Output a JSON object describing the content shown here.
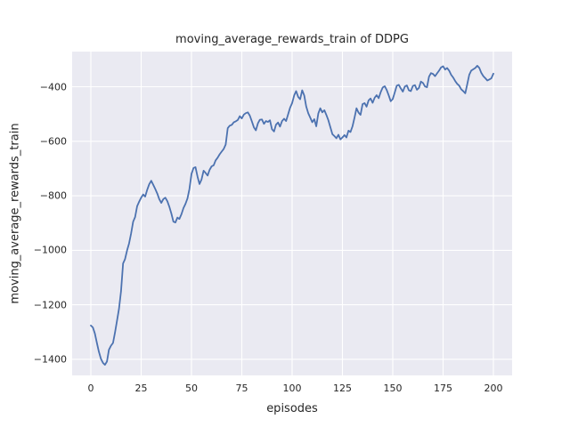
{
  "chart_data": {
    "type": "line",
    "title": "moving_average_rewards_train of DDPG",
    "xlabel": "episodes",
    "ylabel": "moving_average_rewards_train",
    "legend": null,
    "grid": true,
    "axes_background": "#eaeaf2",
    "grid_color": "#ffffff",
    "line_color": "#4c72b0",
    "text_color": "#262626",
    "xlim": [
      -9.29,
      209.29
    ],
    "ylim": [
      -1459,
      -271
    ],
    "xticks": [
      0,
      25,
      50,
      75,
      100,
      125,
      150,
      175,
      200
    ],
    "xtick_labels": [
      "0",
      "25",
      "50",
      "75",
      "100",
      "125",
      "150",
      "175",
      "200"
    ],
    "yticks": [
      -400,
      -600,
      -800,
      -1000,
      -1200,
      -1400
    ],
    "ytick_labels": [
      "−400",
      "−600",
      "−800",
      "−1000",
      "−1200",
      "−1400"
    ],
    "x": [
      0,
      1,
      2,
      3,
      4,
      5,
      6,
      7,
      8,
      9,
      10,
      11,
      12,
      13,
      14,
      15,
      16,
      17,
      18,
      19,
      20,
      21,
      22,
      23,
      24,
      25,
      26,
      27,
      28,
      29,
      30,
      31,
      32,
      33,
      34,
      35,
      36,
      37,
      38,
      39,
      40,
      41,
      42,
      43,
      44,
      45,
      46,
      47,
      48,
      49,
      50,
      51,
      52,
      53,
      54,
      55,
      56,
      57,
      58,
      59,
      60,
      61,
      62,
      63,
      64,
      65,
      66,
      67,
      68,
      69,
      70,
      71,
      72,
      73,
      74,
      75,
      76,
      77,
      78,
      79,
      80,
      81,
      82,
      83,
      84,
      85,
      86,
      87,
      88,
      89,
      90,
      91,
      92,
      93,
      94,
      95,
      96,
      97,
      98,
      99,
      100,
      101,
      102,
      103,
      104,
      105,
      106,
      107,
      108,
      109,
      110,
      111,
      112,
      113,
      114,
      115,
      116,
      117,
      118,
      119,
      120,
      121,
      122,
      123,
      124,
      125,
      126,
      127,
      128,
      129,
      130,
      131,
      132,
      133,
      134,
      135,
      136,
      137,
      138,
      139,
      140,
      141,
      142,
      143,
      144,
      145,
      146,
      147,
      148,
      149,
      150,
      151,
      152,
      153,
      154,
      155,
      156,
      157,
      158,
      159,
      160,
      161,
      162,
      163,
      164,
      165,
      166,
      167,
      168,
      169,
      170,
      171,
      172,
      173,
      174,
      175,
      176,
      177,
      178,
      179,
      180,
      181,
      182,
      183,
      184,
      185,
      186,
      187,
      188,
      189,
      190,
      191,
      192,
      193,
      194,
      195,
      196,
      197,
      198,
      199,
      200
    ],
    "y": [
      -1276,
      -1283,
      -1305,
      -1340,
      -1372,
      -1398,
      -1413,
      -1420,
      -1408,
      -1365,
      -1350,
      -1340,
      -1302,
      -1258,
      -1215,
      -1150,
      -1048,
      -1032,
      -1000,
      -975,
      -938,
      -895,
      -878,
      -838,
      -822,
      -807,
      -795,
      -803,
      -778,
      -758,
      -745,
      -760,
      -775,
      -792,
      -812,
      -826,
      -812,
      -807,
      -820,
      -840,
      -865,
      -895,
      -898,
      -880,
      -885,
      -868,
      -845,
      -830,
      -810,
      -775,
      -720,
      -698,
      -695,
      -730,
      -757,
      -740,
      -708,
      -716,
      -726,
      -705,
      -692,
      -688,
      -670,
      -660,
      -648,
      -638,
      -628,
      -612,
      -552,
      -543,
      -540,
      -530,
      -527,
      -522,
      -508,
      -516,
      -502,
      -497,
      -494,
      -506,
      -527,
      -549,
      -560,
      -534,
      -521,
      -520,
      -536,
      -526,
      -529,
      -523,
      -556,
      -564,
      -539,
      -531,
      -546,
      -526,
      -517,
      -526,
      -501,
      -477,
      -460,
      -432,
      -416,
      -437,
      -446,
      -413,
      -432,
      -472,
      -497,
      -513,
      -530,
      -519,
      -545,
      -498,
      -479,
      -494,
      -486,
      -503,
      -523,
      -548,
      -574,
      -581,
      -589,
      -576,
      -593,
      -586,
      -577,
      -586,
      -561,
      -566,
      -545,
      -513,
      -479,
      -495,
      -503,
      -464,
      -460,
      -473,
      -450,
      -443,
      -459,
      -440,
      -431,
      -442,
      -420,
      -403,
      -398,
      -412,
      -432,
      -453,
      -445,
      -420,
      -396,
      -393,
      -406,
      -418,
      -399,
      -395,
      -413,
      -416,
      -397,
      -394,
      -411,
      -404,
      -381,
      -386,
      -399,
      -402,
      -363,
      -350,
      -353,
      -361,
      -351,
      -341,
      -329,
      -325,
      -337,
      -331,
      -341,
      -356,
      -366,
      -379,
      -389,
      -396,
      -409,
      -416,
      -424,
      -391,
      -356,
      -341,
      -336,
      -331,
      -323,
      -331,
      -349,
      -361,
      -369,
      -377,
      -373,
      -369,
      -352
    ]
  }
}
